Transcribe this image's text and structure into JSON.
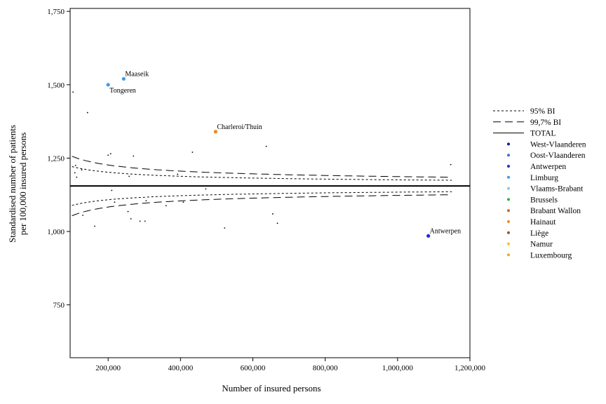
{
  "chart_data": {
    "type": "scatter",
    "title": "",
    "xlabel": "Number of insured persons",
    "ylabel_line1": "Standardised number of patients",
    "ylabel_line2": "per 100,000 insured persons",
    "xlim": [
      95000,
      1200000
    ],
    "ylim": [
      570,
      1760
    ],
    "x_ticks": [
      200000,
      400000,
      600000,
      800000,
      1000000,
      1200000
    ],
    "x_tick_labels": [
      "200,000",
      "400,000",
      "600,000",
      "800,000",
      "1,000,000",
      "1,200,000"
    ],
    "y_ticks": [
      750,
      1000,
      1250,
      1500,
      1750
    ],
    "y_tick_labels": [
      "750",
      "1,000",
      "1,250",
      "1,500",
      "1,750"
    ],
    "grid": false,
    "legend_position": "right",
    "total": 1155,
    "band_x_range": [
      100000,
      1150000
    ],
    "legend": [
      {
        "label": "95% BI",
        "kind": "line",
        "dash": "short"
      },
      {
        "label": "99,7% BI",
        "kind": "line",
        "dash": "long"
      },
      {
        "label": "TOTAL",
        "kind": "line",
        "dash": "solid"
      },
      {
        "label": "West-Vlaanderen",
        "kind": "dot",
        "color": "#0a1f8f"
      },
      {
        "label": "Oost-Vlaanderen",
        "kind": "dot",
        "color": "#3b6fd9"
      },
      {
        "label": "Antwerpen",
        "kind": "dot",
        "color": "#1a2fd0"
      },
      {
        "label": "Limburg",
        "kind": "dot",
        "color": "#3d9be9"
      },
      {
        "label": "Vlaams-Brabant",
        "kind": "dot",
        "color": "#8cc4f0"
      },
      {
        "label": "Brussels",
        "kind": "dot",
        "color": "#33b233"
      },
      {
        "label": "Brabant Wallon",
        "kind": "dot",
        "color": "#d8622a"
      },
      {
        "label": "Hainaut",
        "kind": "dot",
        "color": "#f08a24"
      },
      {
        "label": "Liège",
        "kind": "dot",
        "color": "#a0522d"
      },
      {
        "label": "Namur",
        "kind": "dot",
        "color": "#f5c518"
      },
      {
        "label": "Luxembourg",
        "kind": "dot",
        "color": "#f5a623"
      }
    ],
    "highlighted": [
      {
        "label": "Maaseik",
        "x": 243000,
        "y": 1520,
        "color": "#3d9be9",
        "label_pos": "right-up"
      },
      {
        "label": "Tongeren",
        "x": 200000,
        "y": 1500,
        "color": "#3d9be9",
        "label_pos": "right-down"
      },
      {
        "label": "Charleroi/Thuin",
        "x": 497000,
        "y": 1340,
        "color": "#f08a24",
        "label_pos": "right-up"
      },
      {
        "label": "Antwerpen",
        "x": 1085000,
        "y": 985,
        "color": "#1a2fd0",
        "label_pos": "right-up"
      }
    ],
    "points": [
      {
        "x": 103000,
        "y": 1475
      },
      {
        "x": 108000,
        "y": 1200
      },
      {
        "x": 110000,
        "y": 1225
      },
      {
        "x": 113000,
        "y": 1185
      },
      {
        "x": 127000,
        "y": 1210
      },
      {
        "x": 130000,
        "y": 1055
      },
      {
        "x": 143000,
        "y": 1405
      },
      {
        "x": 163000,
        "y": 1018
      },
      {
        "x": 200000,
        "y": 1260
      },
      {
        "x": 207000,
        "y": 1265
      },
      {
        "x": 210000,
        "y": 1140
      },
      {
        "x": 218000,
        "y": 1100
      },
      {
        "x": 255000,
        "y": 1068
      },
      {
        "x": 258000,
        "y": 1188
      },
      {
        "x": 263000,
        "y": 1043
      },
      {
        "x": 270000,
        "y": 1257
      },
      {
        "x": 288000,
        "y": 1035
      },
      {
        "x": 302000,
        "y": 1035
      },
      {
        "x": 305000,
        "y": 1105
      },
      {
        "x": 360000,
        "y": 1088
      },
      {
        "x": 392000,
        "y": 1195
      },
      {
        "x": 408000,
        "y": 1100
      },
      {
        "x": 433000,
        "y": 1270
      },
      {
        "x": 470000,
        "y": 1145
      },
      {
        "x": 522000,
        "y": 1012
      },
      {
        "x": 637000,
        "y": 1290
      },
      {
        "x": 655000,
        "y": 1060
      },
      {
        "x": 668000,
        "y": 1028
      },
      {
        "x": 1147000,
        "y": 1228
      }
    ]
  }
}
